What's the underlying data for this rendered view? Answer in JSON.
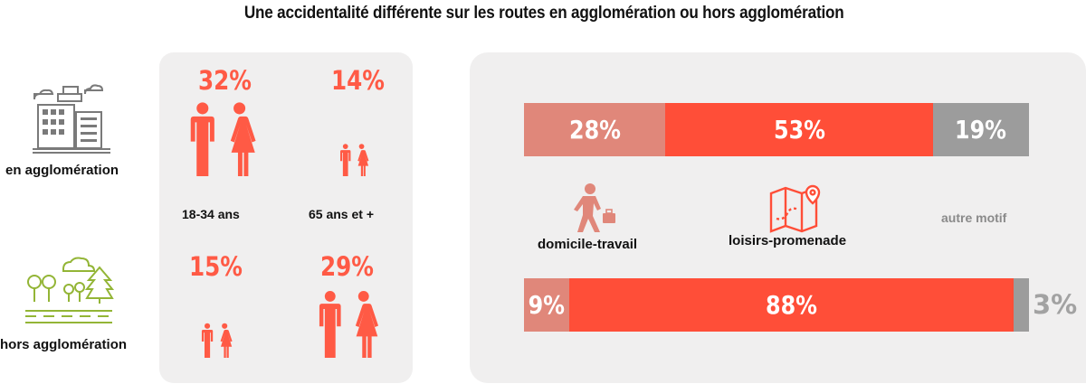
{
  "title": "Une accidentalité différente sur les routes en agglomération ou hors agglomération",
  "locations": {
    "urban": "en agglomération",
    "rural": "hors agglomération"
  },
  "age_groups": {
    "young": "18-34 ans",
    "senior": "65 ans et +"
  },
  "motifs": {
    "commute": "domicile-travail",
    "leisure": "loisirs-promenade",
    "other": "autre motif"
  },
  "colors": {
    "commute": "#e0877a",
    "leisure": "#ff4e38",
    "other": "#9c9c9c",
    "percent_text": "#ff5a45",
    "urban_icon": "#7a7a7a",
    "rural_icon": "#93b536"
  },
  "icons": [
    "city-buildings-icon",
    "countryside-trees-icon",
    "man-woman-icon",
    "walking-businessman-icon",
    "map-pin-icon"
  ],
  "chart_data": [
    {
      "type": "pictogram",
      "categories": [
        "18-34 ans",
        "65 ans et +"
      ],
      "series": [
        {
          "name": "en agglomération",
          "values": [
            32,
            14
          ],
          "labels": [
            "32%",
            "14%"
          ]
        },
        {
          "name": "hors agglomération",
          "values": [
            15,
            29
          ],
          "labels": [
            "15%",
            "29%"
          ]
        }
      ]
    },
    {
      "type": "bar",
      "stacked": true,
      "categories": [
        "en agglomération",
        "hors agglomération"
      ],
      "series": [
        {
          "name": "domicile-travail",
          "values": [
            28,
            9
          ],
          "labels": [
            "28%",
            "9%"
          ]
        },
        {
          "name": "loisirs-promenade",
          "values": [
            53,
            88
          ],
          "labels": [
            "53%",
            "88%"
          ]
        },
        {
          "name": "autre motif",
          "values": [
            19,
            3
          ],
          "labels": [
            "19%",
            "3%"
          ]
        }
      ]
    }
  ]
}
